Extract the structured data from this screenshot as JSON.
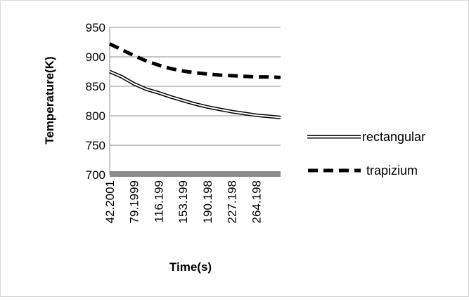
{
  "chart_data": {
    "type": "line",
    "title": "",
    "xlabel": "Time(s)",
    "ylabel": "Temperature(K)",
    "ylim": [
      700,
      950
    ],
    "yticks": [
      700,
      750,
      800,
      850,
      900,
      950
    ],
    "x_tick_labels": [
      "42.2001",
      "79.1999",
      "116.199",
      "153.199",
      "190.198",
      "227.198",
      "264.198"
    ],
    "x": [
      42.2001,
      60.7,
      79.1999,
      97.7,
      116.199,
      134.7,
      153.199,
      171.7,
      190.198,
      208.7,
      227.198,
      245.7,
      264.198,
      282.7,
      301.198
    ],
    "grid": true,
    "legend_position": "right",
    "series": [
      {
        "name": "rectangular",
        "style": "double-line",
        "color": "#000000",
        "values": [
          875,
          866,
          854,
          845,
          839,
          832,
          826,
          820,
          815,
          811,
          807,
          804,
          801,
          799,
          797
        ]
      },
      {
        "name": "trapizium",
        "style": "dashed",
        "color": "#000000",
        "values": [
          922,
          912,
          902,
          893,
          886,
          880,
          876,
          873,
          871,
          869,
          868,
          867,
          866,
          866,
          865
        ]
      }
    ]
  }
}
